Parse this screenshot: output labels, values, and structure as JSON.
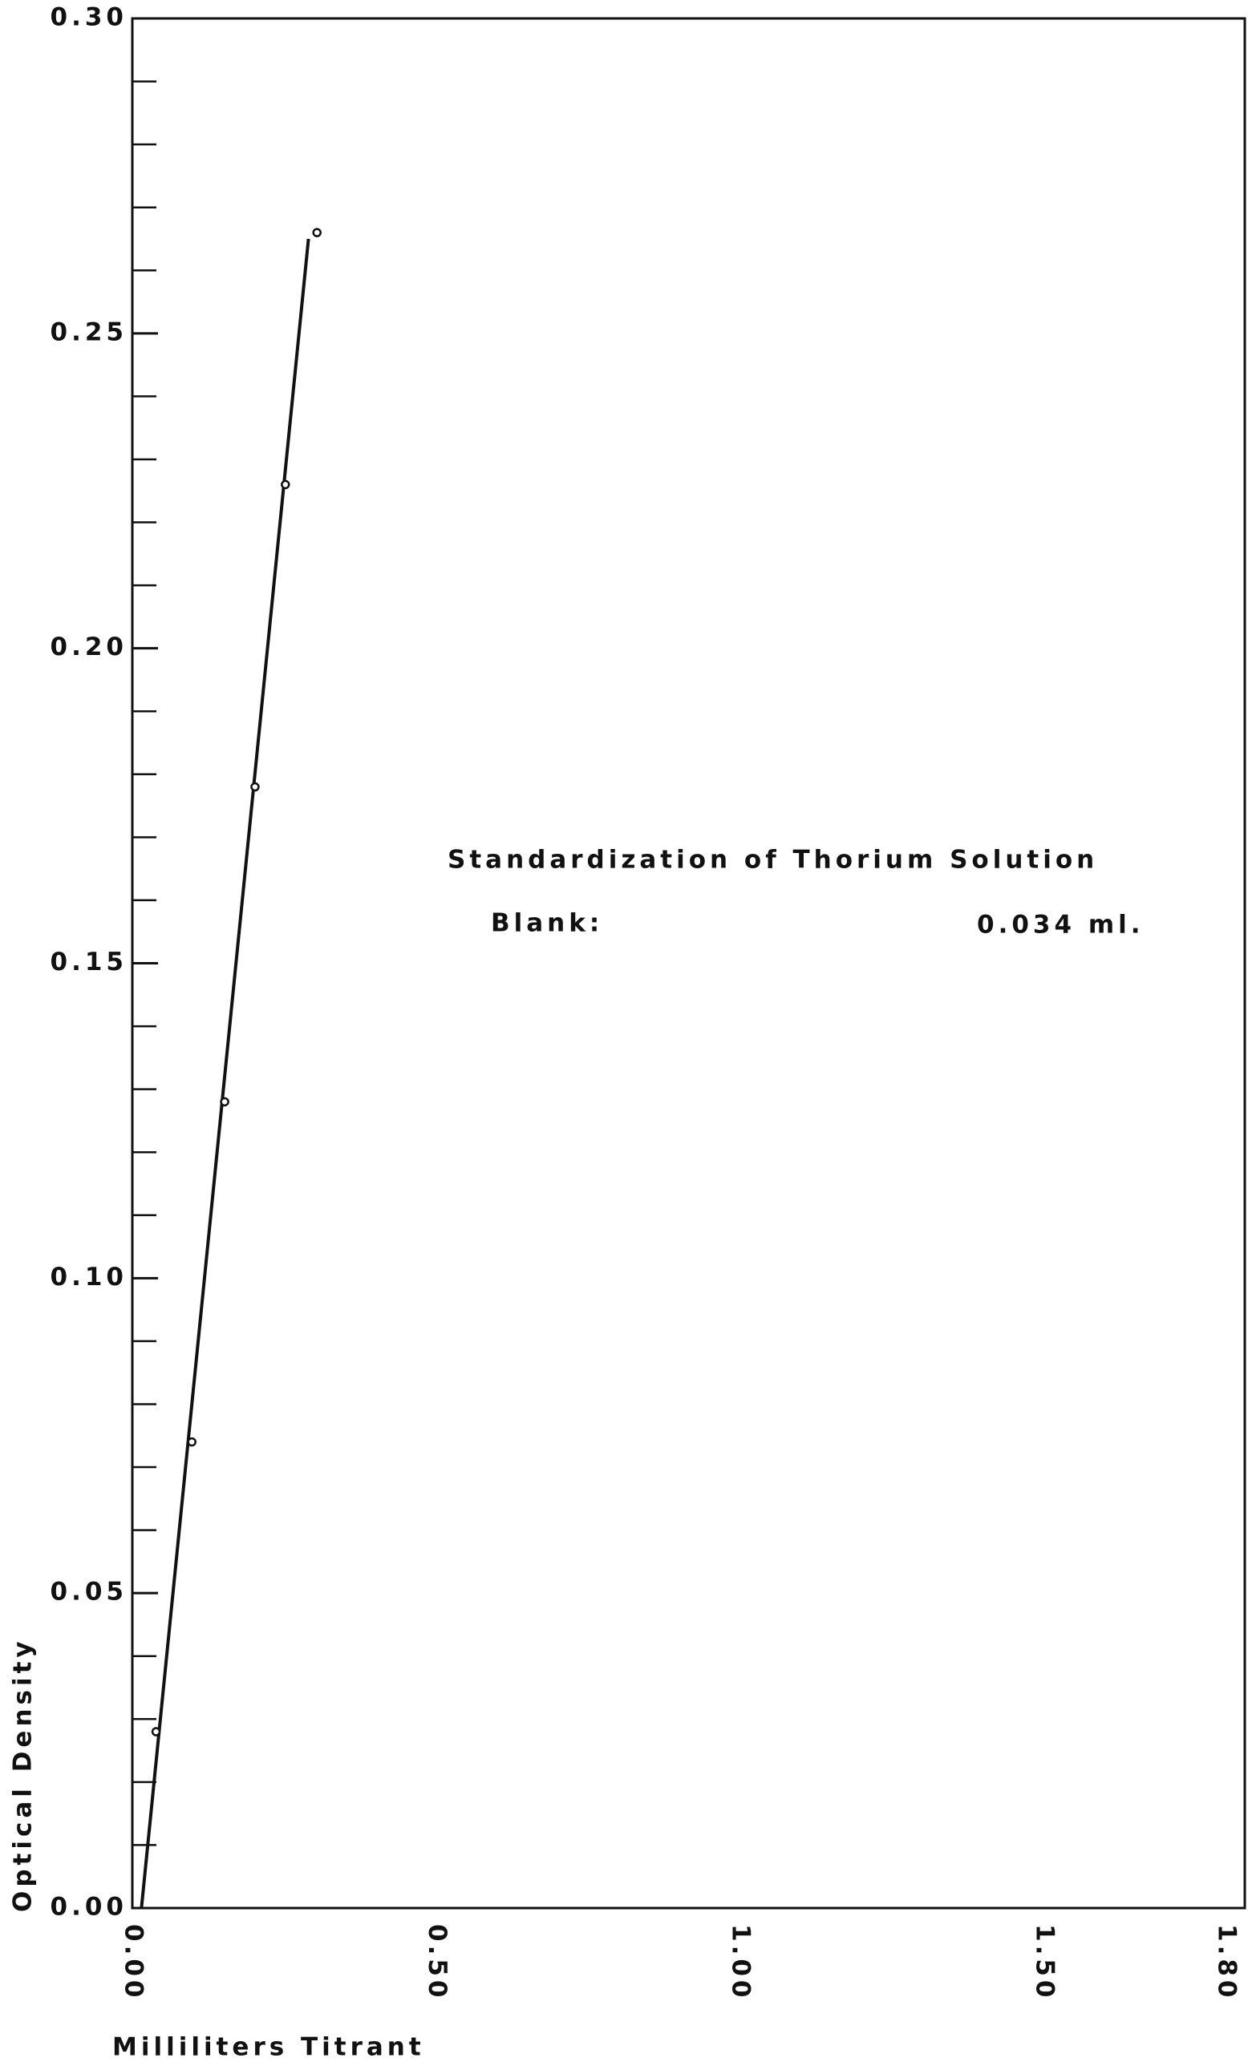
{
  "chart_data": {
    "type": "scatter",
    "xlabel": "Milliliters Titrant",
    "ylabel": "Optical Density",
    "annotations": [
      "Standardization of Thorium Solution",
      "Blank:",
      "0.034 ml."
    ],
    "xlim": [
      0,
      1.8
    ],
    "ylim": [
      0,
      0.3
    ],
    "xticks": [
      {
        "value": 0,
        "label": "0.00"
      },
      {
        "value": 0.5,
        "label": "0.50"
      },
      {
        "value": 1,
        "label": "1.00"
      },
      {
        "value": 1.5,
        "label": "1.50"
      },
      {
        "value": 1.8,
        "label": "1.80"
      }
    ],
    "yticks": [
      {
        "value": 0,
        "label": "0.00"
      },
      {
        "value": 0.05,
        "label": "0.05"
      },
      {
        "value": 0.1,
        "label": "0.10"
      },
      {
        "value": 0.15,
        "label": "0.15"
      },
      {
        "value": 0.2,
        "label": "0.20"
      },
      {
        "value": 0.25,
        "label": "0.25"
      },
      {
        "value": 0.3,
        "label": "0.30"
      }
    ],
    "yminorticks": [
      0.01,
      0.02,
      0.03,
      0.04,
      0.06,
      0.07,
      0.08,
      0.09,
      0.11,
      0.12,
      0.13,
      0.14,
      0.16,
      0.17,
      0.18,
      0.19,
      0.21,
      0.22,
      0.23,
      0.24,
      0.26,
      0.27,
      0.28,
      0.29
    ],
    "color": "#111111",
    "x": [
      0.039,
      0.098,
      0.152,
      0.202,
      0.252,
      0.304
    ],
    "values": [
      0.028,
      0.074,
      0.128,
      0.178,
      0.226,
      0.266
    ],
    "fit": {
      "x": [
        0.015,
        0.29
      ],
      "values": [
        0,
        0.265
      ]
    }
  }
}
